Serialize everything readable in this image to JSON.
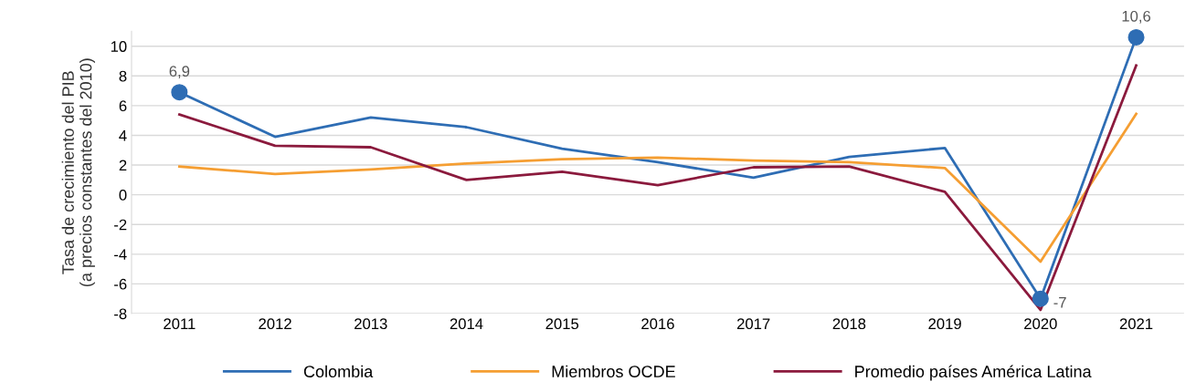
{
  "chart_data": {
    "type": "line",
    "ylabel": "Tasa de crecimiento del PIB\n(a precios constantes del 2010)",
    "categories": [
      "2011",
      "2012",
      "2013",
      "2014",
      "2015",
      "2016",
      "2017",
      "2018",
      "2019",
      "2020",
      "2021"
    ],
    "series": [
      {
        "name": "Colombia",
        "color": "#2e6db4",
        "values": [
          6.9,
          3.9,
          5.2,
          4.55,
          3.1,
          2.2,
          1.15,
          2.55,
          3.15,
          -7,
          10.6
        ],
        "value_labels": [
          "6,9",
          null,
          null,
          null,
          null,
          null,
          null,
          null,
          null,
          "-7",
          "10,6"
        ]
      },
      {
        "name": "Miembros OCDE",
        "color": "#f59e32",
        "values": [
          1.9,
          1.4,
          1.7,
          2.1,
          2.4,
          2.5,
          2.3,
          2.2,
          1.8,
          -4.5,
          5.45
        ]
      },
      {
        "name": "Promedio países América Latina",
        "color": "#8b1a3d",
        "values": [
          5.4,
          3.3,
          3.2,
          1.0,
          1.55,
          0.65,
          1.85,
          1.9,
          0.2,
          -7.75,
          8.7
        ]
      }
    ],
    "ylim": [
      -8,
      11
    ],
    "yticks": [
      -8,
      -6,
      -4,
      -2,
      0,
      2,
      4,
      6,
      8,
      10
    ],
    "grid": "y",
    "legend": "bottom",
    "marker": "none",
    "line_style": "solid"
  }
}
